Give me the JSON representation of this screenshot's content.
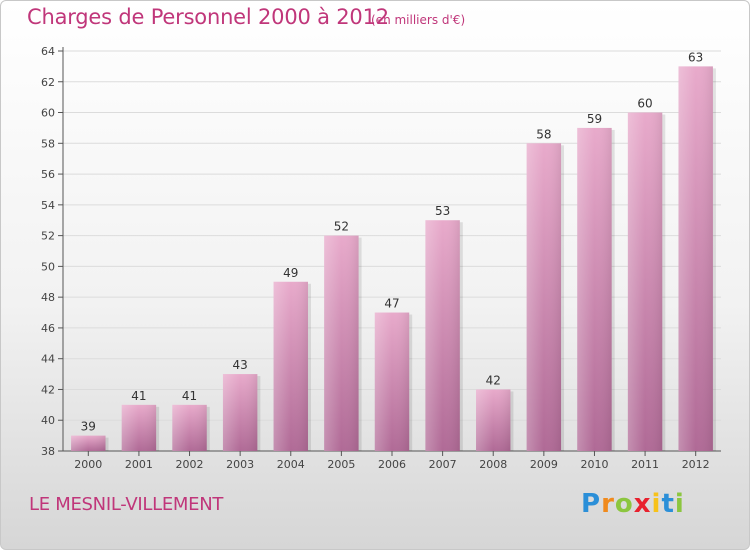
{
  "header": {
    "title": "Charges de Personnel 2000 à 2012",
    "subtitle": "(en milliers d'€)"
  },
  "footer": {
    "commune": "LE MESNIL-VILLEMENT",
    "logo_text": "Proxiti",
    "logo_letters": [
      {
        "char": "P",
        "color": "#2b8fd8"
      },
      {
        "char": "r",
        "color": "#f08a1c"
      },
      {
        "char": "o",
        "color": "#8cc63f"
      },
      {
        "char": "x",
        "color": "#e8212e"
      },
      {
        "char": "i",
        "color": "#f7c21a"
      },
      {
        "char": "t",
        "color": "#2b8fd8"
      },
      {
        "char": "i",
        "color": "#8cc63f"
      }
    ]
  },
  "colors": {
    "accent": "#c0367a",
    "bar_top": "#e8aacb",
    "bar_bottom": "#b06a96",
    "grid": "#dcdcdc",
    "axis": "#555555"
  },
  "chart_data": {
    "type": "bar",
    "title": "Charges de Personnel 2000 à 2012",
    "subtitle": "(en milliers d'€)",
    "categories": [
      "2000",
      "2001",
      "2002",
      "2003",
      "2004",
      "2005",
      "2006",
      "2007",
      "2008",
      "2009",
      "2010",
      "2011",
      "2012"
    ],
    "values": [
      39,
      41,
      41,
      43,
      49,
      52,
      47,
      53,
      42,
      58,
      59,
      60,
      63
    ],
    "ylim": [
      38,
      64
    ],
    "yticks": [
      38,
      40,
      42,
      44,
      46,
      48,
      50,
      52,
      54,
      56,
      58,
      60,
      62,
      64
    ],
    "grid": true,
    "data_labels": true
  }
}
